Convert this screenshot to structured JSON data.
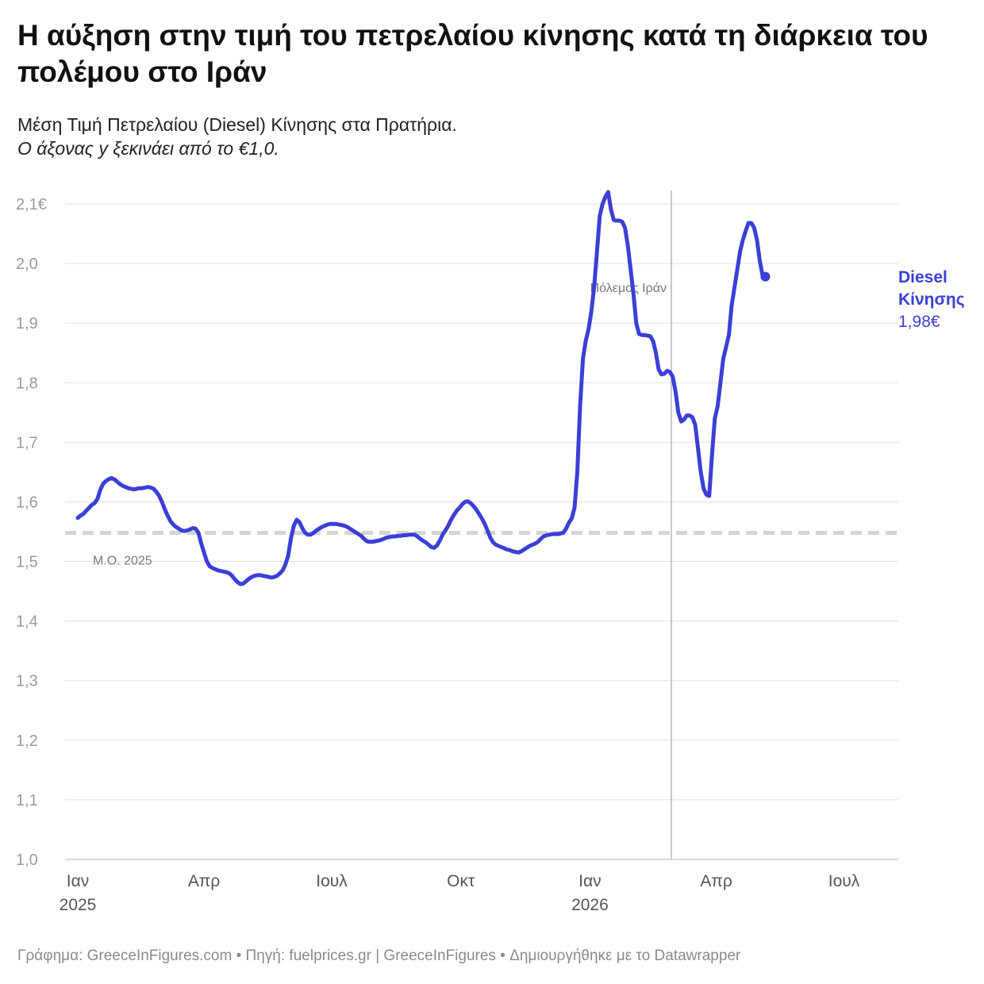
{
  "title": "Η αύξηση στην τιμή του πετρελαίου κίνησης κατά τη διάρκεια του πολέμου στο Ιράν",
  "subtitle_line1": "Μέση Τιμή Πετρελαίου (Diesel) Κίνησης στα Πρατήρια.",
  "subtitle_line2": "Ο άξονας y ξεκινάει από το €1,0.",
  "footer": "Γράφημα: GreeceInFigures.com • Πηγή: fuelprices.gr | GreeceInFigures • Δημιουργήθηκε με το Datawrapper",
  "colors": {
    "series": "#3b3fd6",
    "grid": "#e2e2e2",
    "average": "#d4d4d4",
    "event": "#b8b8b8"
  },
  "chart_data": {
    "type": "line",
    "title": "Η αύξηση στην τιμή του πετρελαίου κίνησης κατά τη διάρκεια του πολέμου στο Ιράν",
    "xlabel": "",
    "ylabel": "",
    "ylim": [
      1.0,
      2.12
    ],
    "xlim": [
      "2025-01-01",
      "2026-07-29"
    ],
    "grid": "horizontal",
    "y_ticks": [
      {
        "value": 1.0,
        "label": "1,0"
      },
      {
        "value": 1.1,
        "label": "1,1"
      },
      {
        "value": 1.2,
        "label": "1,2"
      },
      {
        "value": 1.3,
        "label": "1,3"
      },
      {
        "value": 1.4,
        "label": "1,4"
      },
      {
        "value": 1.5,
        "label": "1,5"
      },
      {
        "value": 1.6,
        "label": "1,6"
      },
      {
        "value": 1.7,
        "label": "1,7"
      },
      {
        "value": 1.8,
        "label": "1,8"
      },
      {
        "value": 1.9,
        "label": "1,9"
      },
      {
        "value": 2.0,
        "label": "2,0"
      },
      {
        "value": 2.1,
        "label": "2,1€"
      }
    ],
    "x_ticks": [
      {
        "date": "2025-01-01",
        "label": "Ιαν",
        "year": "2025"
      },
      {
        "date": "2025-04-01",
        "label": "Απρ",
        "year": ""
      },
      {
        "date": "2025-07-01",
        "label": "Ιουλ",
        "year": ""
      },
      {
        "date": "2025-10-01",
        "label": "Οκτ",
        "year": ""
      },
      {
        "date": "2026-01-01",
        "label": "Ιαν",
        "year": "2026"
      },
      {
        "date": "2026-04-01",
        "label": "Απρ",
        "year": ""
      },
      {
        "date": "2026-07-01",
        "label": "Ιουλ",
        "year": ""
      }
    ],
    "reference_lines": [
      {
        "type": "horizontal",
        "value": 1.548,
        "label": "Μ.Ο. 2025",
        "style": "dashed"
      },
      {
        "type": "vertical",
        "date": "2026-02-28",
        "label": "Πόλεμος Ιράν"
      }
    ],
    "series": [
      {
        "name": "Diesel Κίνησης",
        "last_value_label": "1,98€",
        "points": [
          [
            "2025-01-01",
            1.573
          ],
          [
            "2025-01-03",
            1.577
          ],
          [
            "2025-01-05",
            1.58
          ],
          [
            "2025-01-07",
            1.585
          ],
          [
            "2025-01-09",
            1.59
          ],
          [
            "2025-01-11",
            1.595
          ],
          [
            "2025-01-13",
            1.598
          ],
          [
            "2025-01-15",
            1.605
          ],
          [
            "2025-01-17",
            1.62
          ],
          [
            "2025-01-19",
            1.63
          ],
          [
            "2025-01-21",
            1.635
          ],
          [
            "2025-01-23",
            1.638
          ],
          [
            "2025-01-25",
            1.64
          ],
          [
            "2025-01-27",
            1.638
          ],
          [
            "2025-01-29",
            1.634
          ],
          [
            "2025-01-31",
            1.63
          ],
          [
            "2025-02-02",
            1.627
          ],
          [
            "2025-02-04",
            1.625
          ],
          [
            "2025-02-06",
            1.623
          ],
          [
            "2025-02-08",
            1.622
          ],
          [
            "2025-02-10",
            1.621
          ],
          [
            "2025-02-12",
            1.622
          ],
          [
            "2025-02-14",
            1.623
          ],
          [
            "2025-02-16",
            1.623
          ],
          [
            "2025-02-18",
            1.624
          ],
          [
            "2025-02-20",
            1.625
          ],
          [
            "2025-02-22",
            1.624
          ],
          [
            "2025-02-24",
            1.622
          ],
          [
            "2025-02-26",
            1.617
          ],
          [
            "2025-02-28",
            1.61
          ],
          [
            "2025-03-02",
            1.6
          ],
          [
            "2025-03-04",
            1.588
          ],
          [
            "2025-03-06",
            1.577
          ],
          [
            "2025-03-08",
            1.568
          ],
          [
            "2025-03-10",
            1.562
          ],
          [
            "2025-03-12",
            1.558
          ],
          [
            "2025-03-14",
            1.555
          ],
          [
            "2025-03-16",
            1.552
          ],
          [
            "2025-03-18",
            1.551
          ],
          [
            "2025-03-20",
            1.552
          ],
          [
            "2025-03-22",
            1.554
          ],
          [
            "2025-03-24",
            1.556
          ],
          [
            "2025-03-26",
            1.555
          ],
          [
            "2025-03-28",
            1.548
          ],
          [
            "2025-03-30",
            1.53
          ],
          [
            "2025-04-01",
            1.515
          ],
          [
            "2025-04-03",
            1.5
          ],
          [
            "2025-04-05",
            1.492
          ],
          [
            "2025-04-07",
            1.489
          ],
          [
            "2025-04-09",
            1.487
          ],
          [
            "2025-04-11",
            1.485
          ],
          [
            "2025-04-13",
            1.484
          ],
          [
            "2025-04-15",
            1.483
          ],
          [
            "2025-04-17",
            1.482
          ],
          [
            "2025-04-19",
            1.48
          ],
          [
            "2025-04-21",
            1.476
          ],
          [
            "2025-04-23",
            1.47
          ],
          [
            "2025-04-25",
            1.465
          ],
          [
            "2025-04-27",
            1.462
          ],
          [
            "2025-04-29",
            1.463
          ],
          [
            "2025-05-01",
            1.467
          ],
          [
            "2025-05-03",
            1.471
          ],
          [
            "2025-05-05",
            1.474
          ],
          [
            "2025-05-07",
            1.476
          ],
          [
            "2025-05-09",
            1.477
          ],
          [
            "2025-05-11",
            1.477
          ],
          [
            "2025-05-13",
            1.476
          ],
          [
            "2025-05-15",
            1.475
          ],
          [
            "2025-05-17",
            1.474
          ],
          [
            "2025-05-19",
            1.473
          ],
          [
            "2025-05-21",
            1.474
          ],
          [
            "2025-05-23",
            1.476
          ],
          [
            "2025-05-25",
            1.48
          ],
          [
            "2025-05-27",
            1.485
          ],
          [
            "2025-05-29",
            1.495
          ],
          [
            "2025-05-31",
            1.51
          ],
          [
            "2025-06-02",
            1.54
          ],
          [
            "2025-06-04",
            1.56
          ],
          [
            "2025-06-06",
            1.57
          ],
          [
            "2025-06-08",
            1.566
          ],
          [
            "2025-06-10",
            1.556
          ],
          [
            "2025-06-12",
            1.548
          ],
          [
            "2025-06-14",
            1.545
          ],
          [
            "2025-06-16",
            1.545
          ],
          [
            "2025-06-18",
            1.548
          ],
          [
            "2025-06-20",
            1.552
          ],
          [
            "2025-06-22",
            1.555
          ],
          [
            "2025-06-24",
            1.558
          ],
          [
            "2025-06-26",
            1.56
          ],
          [
            "2025-06-28",
            1.562
          ],
          [
            "2025-06-30",
            1.563
          ],
          [
            "2025-07-02",
            1.563
          ],
          [
            "2025-07-04",
            1.563
          ],
          [
            "2025-07-06",
            1.562
          ],
          [
            "2025-07-08",
            1.561
          ],
          [
            "2025-07-10",
            1.56
          ],
          [
            "2025-07-12",
            1.558
          ],
          [
            "2025-07-14",
            1.555
          ],
          [
            "2025-07-16",
            1.552
          ],
          [
            "2025-07-18",
            1.549
          ],
          [
            "2025-07-20",
            1.546
          ],
          [
            "2025-07-22",
            1.543
          ],
          [
            "2025-07-24",
            1.538
          ],
          [
            "2025-07-26",
            1.534
          ],
          [
            "2025-07-28",
            1.533
          ],
          [
            "2025-07-30",
            1.533
          ],
          [
            "2025-08-01",
            1.534
          ],
          [
            "2025-08-03",
            1.535
          ],
          [
            "2025-08-05",
            1.536
          ],
          [
            "2025-08-07",
            1.538
          ],
          [
            "2025-08-09",
            1.54
          ],
          [
            "2025-08-11",
            1.541
          ],
          [
            "2025-08-13",
            1.542
          ],
          [
            "2025-08-15",
            1.542
          ],
          [
            "2025-08-17",
            1.543
          ],
          [
            "2025-08-19",
            1.543
          ],
          [
            "2025-08-21",
            1.544
          ],
          [
            "2025-08-23",
            1.544
          ],
          [
            "2025-08-25",
            1.545
          ],
          [
            "2025-08-27",
            1.545
          ],
          [
            "2025-08-29",
            1.545
          ],
          [
            "2025-08-31",
            1.542
          ],
          [
            "2025-09-02",
            1.538
          ],
          [
            "2025-09-04",
            1.535
          ],
          [
            "2025-09-06",
            1.532
          ],
          [
            "2025-09-08",
            1.528
          ],
          [
            "2025-09-10",
            1.524
          ],
          [
            "2025-09-12",
            1.523
          ],
          [
            "2025-09-14",
            1.527
          ],
          [
            "2025-09-16",
            1.535
          ],
          [
            "2025-09-18",
            1.545
          ],
          [
            "2025-09-20",
            1.552
          ],
          [
            "2025-09-22",
            1.56
          ],
          [
            "2025-09-24",
            1.57
          ],
          [
            "2025-09-26",
            1.578
          ],
          [
            "2025-09-28",
            1.585
          ],
          [
            "2025-09-30",
            1.59
          ],
          [
            "2025-10-02",
            1.596
          ],
          [
            "2025-10-04",
            1.6
          ],
          [
            "2025-10-06",
            1.601
          ],
          [
            "2025-10-08",
            1.598
          ],
          [
            "2025-10-10",
            1.593
          ],
          [
            "2025-10-12",
            1.587
          ],
          [
            "2025-10-14",
            1.58
          ],
          [
            "2025-10-16",
            1.572
          ],
          [
            "2025-10-18",
            1.563
          ],
          [
            "2025-10-20",
            1.552
          ],
          [
            "2025-10-22",
            1.54
          ],
          [
            "2025-10-24",
            1.532
          ],
          [
            "2025-10-26",
            1.528
          ],
          [
            "2025-10-28",
            1.526
          ],
          [
            "2025-10-30",
            1.524
          ],
          [
            "2025-11-01",
            1.522
          ],
          [
            "2025-11-03",
            1.52
          ],
          [
            "2025-11-05",
            1.519
          ],
          [
            "2025-11-07",
            1.517
          ],
          [
            "2025-11-09",
            1.516
          ],
          [
            "2025-11-11",
            1.515
          ],
          [
            "2025-11-13",
            1.517
          ],
          [
            "2025-11-15",
            1.52
          ],
          [
            "2025-11-17",
            1.523
          ],
          [
            "2025-11-19",
            1.526
          ],
          [
            "2025-11-21",
            1.528
          ],
          [
            "2025-11-23",
            1.53
          ],
          [
            "2025-11-25",
            1.533
          ],
          [
            "2025-11-27",
            1.538
          ],
          [
            "2025-11-29",
            1.542
          ],
          [
            "2025-12-01",
            1.544
          ],
          [
            "2025-12-03",
            1.545
          ],
          [
            "2025-12-05",
            1.546
          ],
          [
            "2025-12-07",
            1.546
          ],
          [
            "2025-12-09",
            1.546
          ],
          [
            "2025-12-11",
            1.547
          ],
          [
            "2025-12-13",
            1.548
          ],
          [
            "2025-12-15",
            1.555
          ],
          [
            "2025-12-17",
            1.565
          ],
          [
            "2025-12-19",
            1.572
          ],
          [
            "2025-12-21",
            1.59
          ],
          [
            "2025-12-23",
            1.65
          ],
          [
            "2025-12-25",
            1.76
          ],
          [
            "2025-12-27",
            1.84
          ],
          [
            "2025-12-29",
            1.87
          ],
          [
            "2025-12-31",
            1.89
          ],
          [
            "2026-01-02",
            1.92
          ],
          [
            "2026-01-04",
            1.96
          ],
          [
            "2026-01-06",
            2.02
          ],
          [
            "2026-01-08",
            2.08
          ],
          [
            "2026-01-10",
            2.1
          ],
          [
            "2026-01-12",
            2.112
          ],
          [
            "2026-01-14",
            2.12
          ],
          [
            "2026-01-16",
            2.09
          ],
          [
            "2026-01-18",
            2.073
          ],
          [
            "2026-01-20",
            2.072
          ],
          [
            "2026-01-22",
            2.072
          ],
          [
            "2026-01-24",
            2.07
          ],
          [
            "2026-01-26",
            2.06
          ],
          [
            "2026-01-28",
            2.03
          ],
          [
            "2026-01-30",
            1.99
          ],
          [
            "2026-02-01",
            1.95
          ],
          [
            "2026-02-03",
            1.9
          ],
          [
            "2026-02-05",
            1.882
          ],
          [
            "2026-02-07",
            1.88
          ],
          [
            "2026-02-09",
            1.88
          ],
          [
            "2026-02-11",
            1.879
          ],
          [
            "2026-02-13",
            1.878
          ],
          [
            "2026-02-15",
            1.87
          ],
          [
            "2026-02-17",
            1.85
          ],
          [
            "2026-02-19",
            1.822
          ],
          [
            "2026-02-21",
            1.814
          ],
          [
            "2026-02-23",
            1.815
          ],
          [
            "2026-02-25",
            1.82
          ],
          [
            "2026-02-27",
            1.818
          ],
          [
            "2026-03-01",
            1.81
          ],
          [
            "2026-03-03",
            1.785
          ],
          [
            "2026-03-05",
            1.75
          ],
          [
            "2026-03-07",
            1.735
          ],
          [
            "2026-03-09",
            1.738
          ],
          [
            "2026-03-11",
            1.745
          ],
          [
            "2026-03-13",
            1.745
          ],
          [
            "2026-03-15",
            1.742
          ],
          [
            "2026-03-17",
            1.73
          ],
          [
            "2026-03-19",
            1.69
          ],
          [
            "2026-03-21",
            1.65
          ],
          [
            "2026-03-23",
            1.622
          ],
          [
            "2026-03-25",
            1.612
          ],
          [
            "2026-03-27",
            1.61
          ],
          [
            "2026-03-29",
            1.68
          ],
          [
            "2026-03-31",
            1.74
          ],
          [
            "2026-04-02",
            1.76
          ],
          [
            "2026-04-04",
            1.8
          ],
          [
            "2026-04-06",
            1.84
          ],
          [
            "2026-04-08",
            1.86
          ],
          [
            "2026-04-10",
            1.88
          ],
          [
            "2026-04-12",
            1.93
          ],
          [
            "2026-04-14",
            1.96
          ],
          [
            "2026-04-16",
            1.99
          ],
          [
            "2026-04-18",
            2.02
          ],
          [
            "2026-04-20",
            2.04
          ],
          [
            "2026-04-22",
            2.055
          ],
          [
            "2026-04-24",
            2.068
          ],
          [
            "2026-04-26",
            2.068
          ],
          [
            "2026-04-28",
            2.06
          ],
          [
            "2026-04-30",
            2.04
          ],
          [
            "2026-05-02",
            2.005
          ],
          [
            "2026-05-04",
            1.98
          ],
          [
            "2026-05-06",
            1.978
          ]
        ]
      }
    ]
  }
}
